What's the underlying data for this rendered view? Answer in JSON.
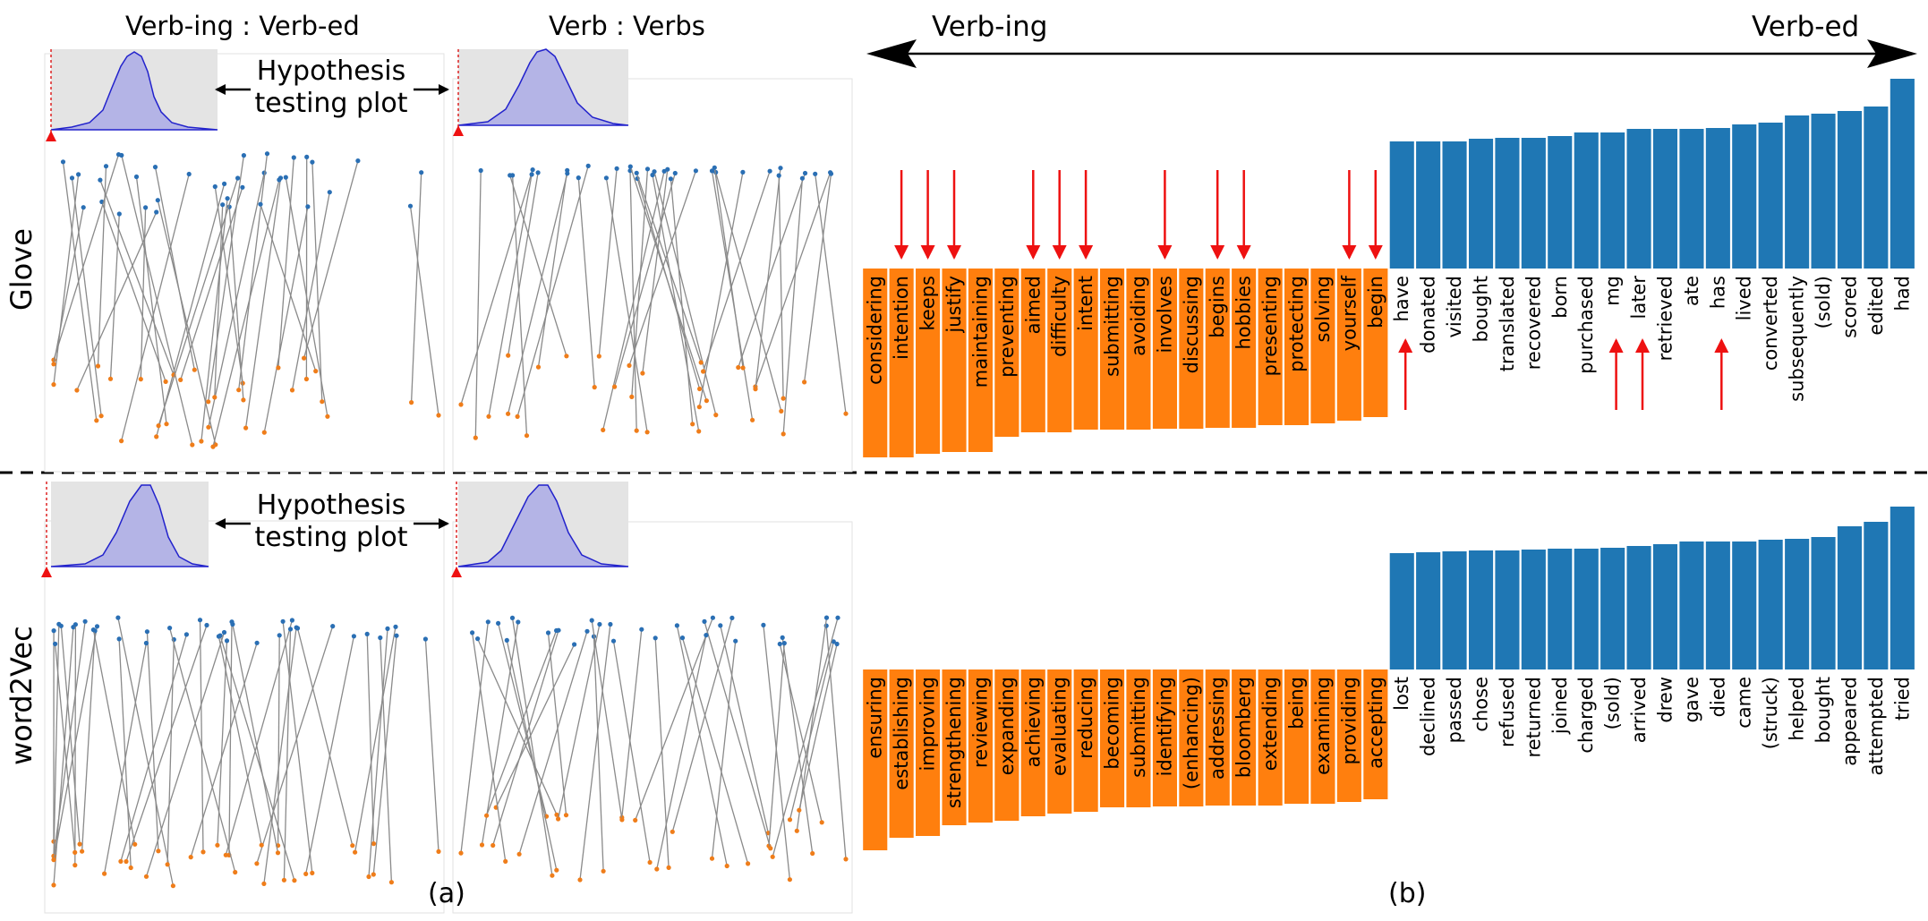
{
  "labels": {
    "col_a1": "Verb-ing : Verb-ed",
    "col_a2": "Verb : Verbs",
    "row_glove": "Glove",
    "row_w2v": "word2Vec",
    "hypothesis_line1": "Hypothesis",
    "hypothesis_line2": "testing plot",
    "panel_a": "(a)",
    "panel_b": "(b)",
    "axis_left": "Verb-ing",
    "axis_right": "Verb-ed"
  },
  "colors": {
    "negative": "#ff7f0e",
    "positive": "#1f77b4",
    "arrow": "#ee1111",
    "hist_fill": "#b4b4e6",
    "hist_bg": "#e4e4e4"
  },
  "chart_data": [
    {
      "type": "bar",
      "model": "Glove",
      "categories": [
        "considering",
        "intention",
        "keeps",
        "justify",
        "maintaining",
        "preventing",
        "aimed",
        "difficulty",
        "intent",
        "submitting",
        "avoiding",
        "involves",
        "discussing",
        "begins",
        "hobbies",
        "presenting",
        "protecting",
        "solving",
        "yourself",
        "begin",
        "have",
        "donated",
        "visited",
        "bought",
        "translated",
        "recovered",
        "born",
        "purchased",
        "mg",
        "later",
        "retrieved",
        "ate",
        "has",
        "lived",
        "converted",
        "subsequently",
        "(sold)",
        "scored",
        "edited",
        "had"
      ],
      "values": [
        -0.211,
        -0.211,
        -0.207,
        -0.205,
        -0.205,
        -0.188,
        -0.183,
        -0.183,
        -0.18,
        -0.18,
        -0.18,
        -0.179,
        -0.179,
        -0.178,
        -0.178,
        -0.175,
        -0.175,
        -0.173,
        -0.17,
        -0.166,
        0.142,
        0.142,
        0.142,
        0.145,
        0.146,
        0.146,
        0.148,
        0.152,
        0.152,
        0.156,
        0.156,
        0.156,
        0.157,
        0.161,
        0.163,
        0.171,
        0.173,
        0.176,
        0.181,
        0.212
      ],
      "marked": [
        "intention",
        "keeps",
        "justify",
        "aimed",
        "difficulty",
        "intent",
        "involves",
        "begins",
        "hobbies",
        "yourself",
        "begin",
        "have",
        "mg",
        "later",
        "has"
      ]
    },
    {
      "type": "bar",
      "model": "word2Vec",
      "categories": [
        "ensuring",
        "establishing",
        "improving",
        "strengthening",
        "reviewing",
        "expanding",
        "achieving",
        "evaluating",
        "reducing",
        "becoming",
        "submitting",
        "identifying",
        "(enhancing)",
        "addressing",
        "bloomberg",
        "extending",
        "being",
        "examining",
        "providing",
        "accepting",
        "lost",
        "declined",
        "passed",
        "chose",
        "refused",
        "returned",
        "joined",
        "charged",
        "(sold)",
        "arrived",
        "drew",
        "gave",
        "died",
        "came",
        "(struck)",
        "helped",
        "bought",
        "appeared",
        "attempted",
        "tried"
      ],
      "values": [
        -0.202,
        -0.188,
        -0.186,
        -0.174,
        -0.171,
        -0.169,
        -0.164,
        -0.161,
        -0.159,
        -0.154,
        -0.154,
        -0.153,
        -0.153,
        -0.152,
        -0.152,
        -0.152,
        -0.15,
        -0.15,
        -0.148,
        -0.145,
        0.13,
        0.131,
        0.132,
        0.133,
        0.133,
        0.134,
        0.135,
        0.135,
        0.136,
        0.138,
        0.14,
        0.143,
        0.143,
        0.143,
        0.145,
        0.146,
        0.148,
        0.16,
        0.165,
        0.182
      ],
      "marked": []
    }
  ]
}
